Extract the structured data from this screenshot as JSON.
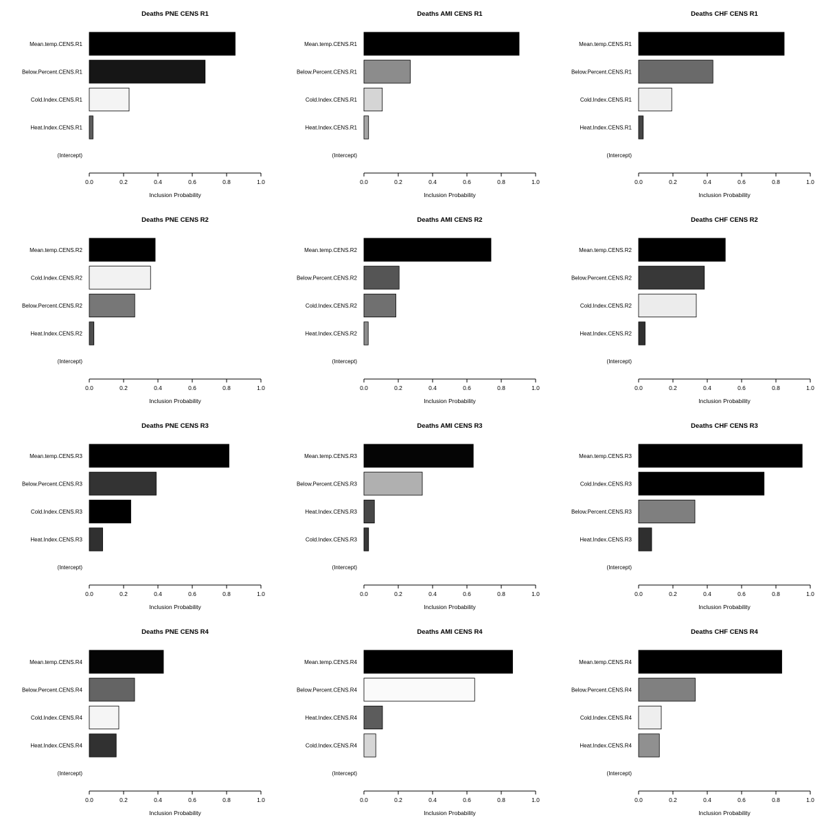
{
  "chart_data": [
    {
      "type": "bar",
      "orientation": "horizontal",
      "title": "Deaths PNE CENS R1",
      "xlabel": "Inclusion Probability",
      "xlim": [
        0,
        1.0
      ],
      "x_ticks": [
        "0.0",
        "0.2",
        "0.4",
        "0.6",
        "0.8",
        "1.0"
      ],
      "categories": [
        "Mean.temp.CENS.R1",
        "Below.Percent.CENS.R1",
        "Cold.Index.CENS.R1",
        "Heat.Index.CENS.R1",
        "(Intercept)"
      ],
      "values": [
        0.85,
        0.675,
        0.232,
        0.022,
        0.0
      ],
      "colors": [
        "#000000",
        "#161616",
        "#f4f4f4",
        "#5e5e5e",
        "#ffffff"
      ]
    },
    {
      "type": "bar",
      "orientation": "horizontal",
      "title": "Deaths AMI CENS R1",
      "xlabel": "Inclusion Probability",
      "xlim": [
        0,
        1.0
      ],
      "x_ticks": [
        "0.0",
        "0.2",
        "0.4",
        "0.6",
        "0.8",
        "1.0"
      ],
      "categories": [
        "Mean.temp.CENS.R1",
        "Below.Percent.CENS.R1",
        "Cold.Index.CENS.R1",
        "Heat.Index.CENS.R1",
        "(Intercept)"
      ],
      "values": [
        0.904,
        0.27,
        0.107,
        0.027,
        0.0
      ],
      "colors": [
        "#000000",
        "#8c8c8c",
        "#d5d5d5",
        "#a5a5a5",
        "#ffffff"
      ]
    },
    {
      "type": "bar",
      "orientation": "horizontal",
      "title": "Deaths CHF CENS R1",
      "xlabel": "Inclusion Probability",
      "xlim": [
        0,
        1.0
      ],
      "x_ticks": [
        "0.0",
        "0.2",
        "0.4",
        "0.6",
        "0.8",
        "1.0"
      ],
      "categories": [
        "Mean.temp.CENS.R1",
        "Below.Percent.CENS.R1",
        "Cold.Index.CENS.R1",
        "Heat.Index.CENS.R1",
        "(Intercept)"
      ],
      "values": [
        0.848,
        0.433,
        0.193,
        0.027,
        0.0
      ],
      "colors": [
        "#000000",
        "#6a6a6a",
        "#efefef",
        "#464646",
        "#ffffff"
      ]
    },
    {
      "type": "bar",
      "orientation": "horizontal",
      "title": "Deaths PNE CENS R2",
      "xlabel": "Inclusion Probability",
      "xlim": [
        0,
        1.0
      ],
      "x_ticks": [
        "0.0",
        "0.2",
        "0.4",
        "0.6",
        "0.8",
        "1.0"
      ],
      "categories": [
        "Mean.temp.CENS.R2",
        "Cold.Index.CENS.R2",
        "Below.Percent.CENS.R2",
        "Heat.Index.CENS.R2",
        "(Intercept)"
      ],
      "values": [
        0.384,
        0.357,
        0.265,
        0.027,
        0.0
      ],
      "colors": [
        "#000000",
        "#f2f2f2",
        "#777777",
        "#4e4e4e",
        "#ffffff"
      ]
    },
    {
      "type": "bar",
      "orientation": "horizontal",
      "title": "Deaths AMI CENS R2",
      "xlabel": "Inclusion Probability",
      "xlim": [
        0,
        1.0
      ],
      "x_ticks": [
        "0.0",
        "0.2",
        "0.4",
        "0.6",
        "0.8",
        "1.0"
      ],
      "categories": [
        "Mean.temp.CENS.R2",
        "Below.Percent.CENS.R2",
        "Cold.Index.CENS.R2",
        "Heat.Index.CENS.R2",
        "(Intercept)"
      ],
      "values": [
        0.74,
        0.205,
        0.186,
        0.025,
        0.0
      ],
      "colors": [
        "#000000",
        "#555555",
        "#707070",
        "#8c8c8c",
        "#ffffff"
      ]
    },
    {
      "type": "bar",
      "orientation": "horizontal",
      "title": "Deaths CHF CENS R2",
      "xlabel": "Inclusion Probability",
      "xlim": [
        0,
        1.0
      ],
      "x_ticks": [
        "0.0",
        "0.2",
        "0.4",
        "0.6",
        "0.8",
        "1.0"
      ],
      "categories": [
        "Mean.temp.CENS.R2",
        "Below.Percent.CENS.R2",
        "Cold.Index.CENS.R2",
        "Heat.Index.CENS.R2",
        "(Intercept)"
      ],
      "values": [
        0.505,
        0.383,
        0.336,
        0.038,
        0.0
      ],
      "colors": [
        "#000000",
        "#383838",
        "#ececec",
        "#303030",
        "#ffffff"
      ]
    },
    {
      "type": "bar",
      "orientation": "horizontal",
      "title": "Deaths PNE CENS R3",
      "xlabel": "Inclusion Probability",
      "xlim": [
        0,
        1.0
      ],
      "x_ticks": [
        "0.0",
        "0.2",
        "0.4",
        "0.6",
        "0.8",
        "1.0"
      ],
      "categories": [
        "Mean.temp.CENS.R3",
        "Below.Percent.CENS.R3",
        "Cold.Index.CENS.R3",
        "Heat.Index.CENS.R3",
        "(Intercept)"
      ],
      "values": [
        0.814,
        0.39,
        0.242,
        0.078,
        0.0
      ],
      "colors": [
        "#000000",
        "#333333",
        "#000000",
        "#303030",
        "#ffffff"
      ]
    },
    {
      "type": "bar",
      "orientation": "horizontal",
      "title": "Deaths AMI CENS R3",
      "xlabel": "Inclusion Probability",
      "xlim": [
        0,
        1.0
      ],
      "x_ticks": [
        "0.0",
        "0.2",
        "0.4",
        "0.6",
        "0.8",
        "1.0"
      ],
      "categories": [
        "Mean.temp.CENS.R3",
        "Below.Percent.CENS.R3",
        "Heat.Index.CENS.R3",
        "Cold.Index.CENS.R3",
        "(Intercept)"
      ],
      "values": [
        0.637,
        0.34,
        0.061,
        0.027,
        0.0
      ],
      "colors": [
        "#050505",
        "#b0b0b0",
        "#474747",
        "#383838",
        "#ffffff"
      ]
    },
    {
      "type": "bar",
      "orientation": "horizontal",
      "title": "Deaths CHF CENS R3",
      "xlabel": "Inclusion Probability",
      "xlim": [
        0,
        1.0
      ],
      "x_ticks": [
        "0.0",
        "0.2",
        "0.4",
        "0.6",
        "0.8",
        "1.0"
      ],
      "categories": [
        "Mean.temp.CENS.R3",
        "Cold.Index.CENS.R3",
        "Below.Percent.CENS.R3",
        "Heat.Index.CENS.R3",
        "(Intercept)"
      ],
      "values": [
        0.953,
        0.731,
        0.328,
        0.076,
        0.0
      ],
      "colors": [
        "#000000",
        "#000000",
        "#7f7f7f",
        "#2f2f2f",
        "#ffffff"
      ]
    },
    {
      "type": "bar",
      "orientation": "horizontal",
      "title": "Deaths PNE CENS R4",
      "xlabel": "Inclusion Probability",
      "xlim": [
        0,
        1.0
      ],
      "x_ticks": [
        "0.0",
        "0.2",
        "0.4",
        "0.6",
        "0.8",
        "1.0"
      ],
      "categories": [
        "Mean.temp.CENS.R4",
        "Below.Percent.CENS.R4",
        "Cold.Index.CENS.R4",
        "Heat.Index.CENS.R4",
        "(Intercept)"
      ],
      "values": [
        0.432,
        0.264,
        0.172,
        0.157,
        0.0
      ],
      "colors": [
        "#050505",
        "#646464",
        "#f5f5f5",
        "#313131",
        "#ffffff"
      ]
    },
    {
      "type": "bar",
      "orientation": "horizontal",
      "title": "Deaths AMI CENS R4",
      "xlabel": "Inclusion Probability",
      "xlim": [
        0,
        1.0
      ],
      "x_ticks": [
        "0.0",
        "0.2",
        "0.4",
        "0.6",
        "0.8",
        "1.0"
      ],
      "categories": [
        "Mean.temp.CENS.R4",
        "Below.Percent.CENS.R4",
        "Heat.Index.CENS.R4",
        "Cold.Index.CENS.R4",
        "(Intercept)"
      ],
      "values": [
        0.866,
        0.645,
        0.108,
        0.069,
        0.0
      ],
      "colors": [
        "#000000",
        "#fafafa",
        "#5c5c5c",
        "#d6d6d6",
        "#ffffff"
      ]
    },
    {
      "type": "bar",
      "orientation": "horizontal",
      "title": "Deaths CHF CENS R4",
      "xlabel": "Inclusion Probability",
      "xlim": [
        0,
        1.0
      ],
      "x_ticks": [
        "0.0",
        "0.2",
        "0.4",
        "0.6",
        "0.8",
        "1.0"
      ],
      "categories": [
        "Mean.temp.CENS.R4",
        "Below.Percent.CENS.R4",
        "Cold.Index.CENS.R4",
        "Heat.Index.CENS.R4",
        "(Intercept)"
      ],
      "values": [
        0.834,
        0.33,
        0.132,
        0.121,
        0.0
      ],
      "colors": [
        "#000000",
        "#808080",
        "#eeeeee",
        "#909090",
        "#ffffff"
      ]
    }
  ]
}
